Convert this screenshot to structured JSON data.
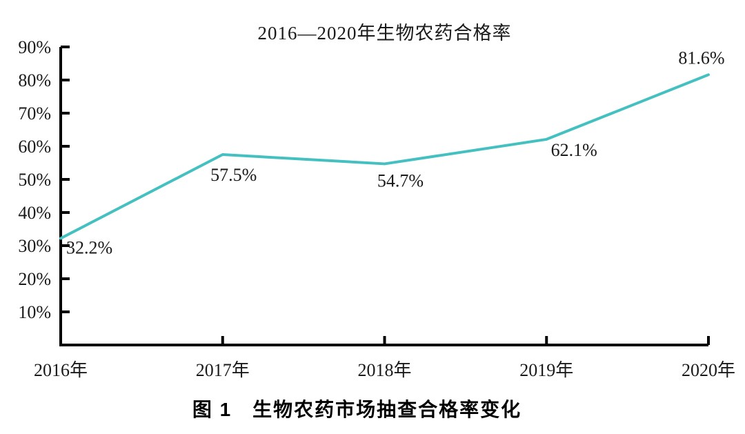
{
  "chart_data": {
    "type": "line",
    "title": "2016—2020年生物农药合格率",
    "categories": [
      "2016年",
      "2017年",
      "2018年",
      "2019年",
      "2020年"
    ],
    "series": [
      {
        "name": "生物农药合格率",
        "values": [
          32.2,
          57.5,
          54.7,
          62.1,
          81.6
        ]
      }
    ],
    "point_labels": [
      "32.2%",
      "57.5%",
      "54.7%",
      "62.1%",
      "81.6%"
    ],
    "ytick_labels": [
      "10%",
      "20%",
      "30%",
      "40%",
      "50%",
      "60%",
      "70%",
      "80%",
      "90%"
    ],
    "ylim": [
      0,
      90
    ],
    "xlabel": "",
    "ylabel": "",
    "grid": false,
    "legend": "none",
    "line_color": "#45c0c1",
    "axis_color": "#000000",
    "text_color": "#1a1a1a"
  },
  "figure": {
    "caption": "图 1　生物农药市场抽查合格率变化"
  }
}
